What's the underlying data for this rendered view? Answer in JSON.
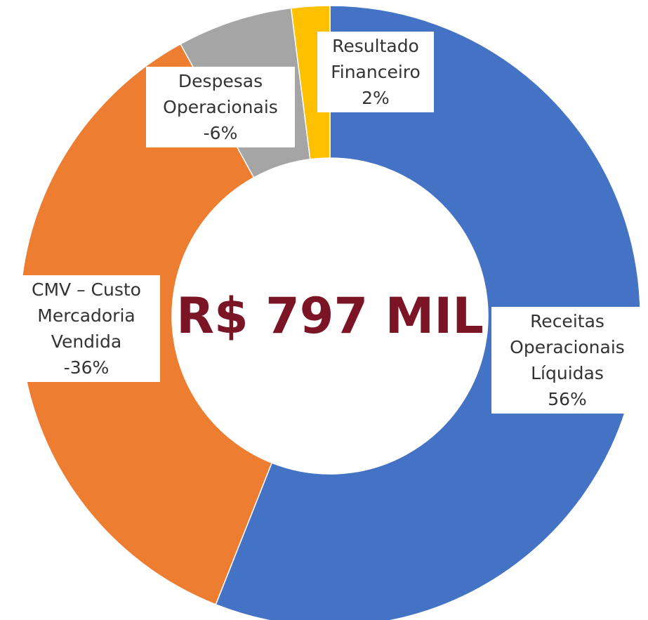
{
  "chart_data": {
    "type": "donut",
    "center_text": "R$ 797 MIL",
    "categories": [
      "Receitas Operacionais Líquidas",
      "CMV – Custo Mercadoria Vendida",
      "Despesas Operacionais",
      "Resultado Financeiro"
    ],
    "values": [
      56,
      -36,
      -6,
      2
    ],
    "value_labels": [
      "56%",
      "-36%",
      "-6%",
      "2%"
    ],
    "colors": [
      "#4472c4",
      "#ed7d31",
      "#a5a5a5",
      "#ffc000"
    ]
  }
}
